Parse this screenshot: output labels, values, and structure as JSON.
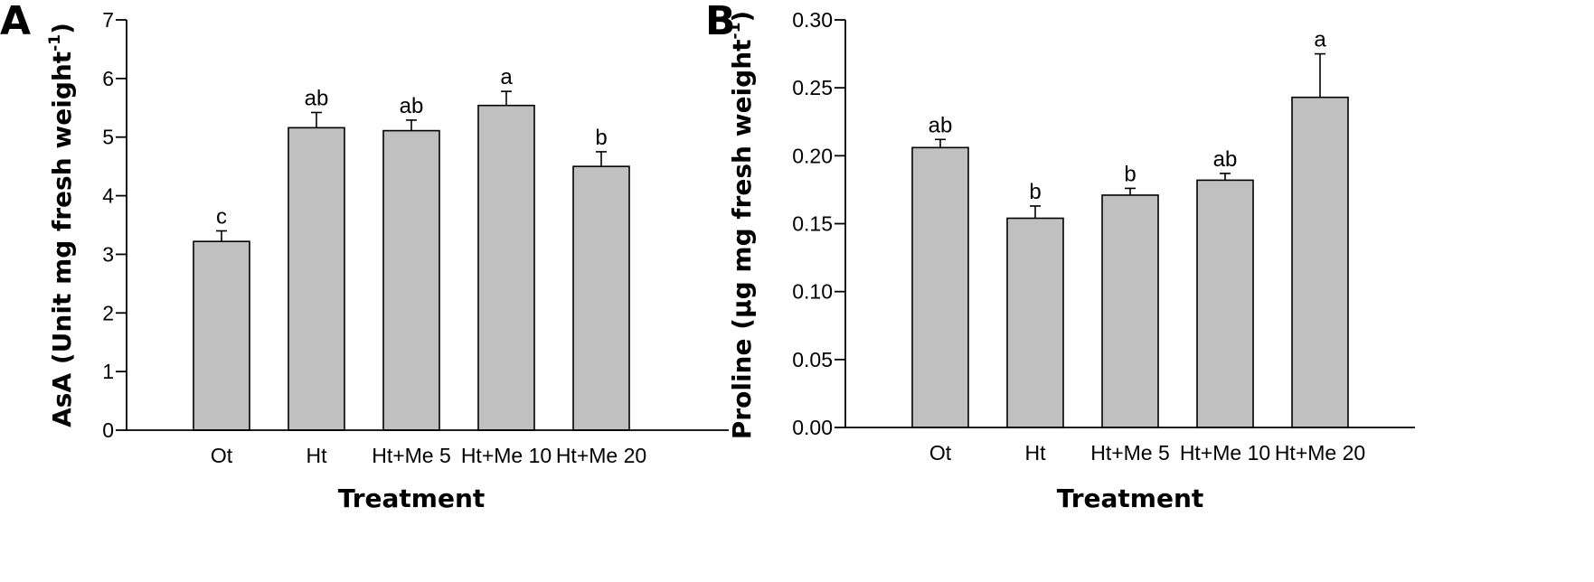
{
  "chart_data": [
    {
      "panel": "A",
      "type": "bar",
      "categories": [
        "Ot",
        "Ht",
        "Ht+Me 5",
        "Ht+Me 10",
        "Ht+Me 20"
      ],
      "values": [
        3.22,
        5.16,
        5.11,
        5.54,
        4.5
      ],
      "errors": [
        0.18,
        0.26,
        0.18,
        0.24,
        0.25
      ],
      "significance": [
        "c",
        "ab",
        "ab",
        "a",
        "b"
      ],
      "ylim": [
        0,
        7
      ],
      "yticks": [
        "0",
        "1",
        "2",
        "3",
        "4",
        "5",
        "6",
        "7"
      ],
      "xlabel": "Treatment",
      "ylabel": "AsA (Unit mg fresh weight",
      "ylabel_sup": "-1",
      "ylabel_end": ")",
      "bar_color": "#c0c0c0",
      "grid": false
    },
    {
      "panel": "B",
      "type": "bar",
      "categories": [
        "Ot",
        "Ht",
        "Ht+Me 5",
        "Ht+Me 10",
        "Ht+Me 20"
      ],
      "values": [
        0.206,
        0.154,
        0.171,
        0.182,
        0.243
      ],
      "errors": [
        0.006,
        0.009,
        0.005,
        0.005,
        0.032
      ],
      "significance": [
        "ab",
        "b",
        "b",
        "ab",
        "a"
      ],
      "ylim": [
        0,
        0.3
      ],
      "yticks": [
        "0.00",
        "0.05",
        "0.10",
        "0.15",
        "0.20",
        "0.25",
        "0.30"
      ],
      "xlabel": "Treatment",
      "ylabel": "Proline (μg mg fresh weight",
      "ylabel_sup": "-1",
      "ylabel_end": ")",
      "bar_color": "#c0c0c0",
      "grid": false
    }
  ]
}
